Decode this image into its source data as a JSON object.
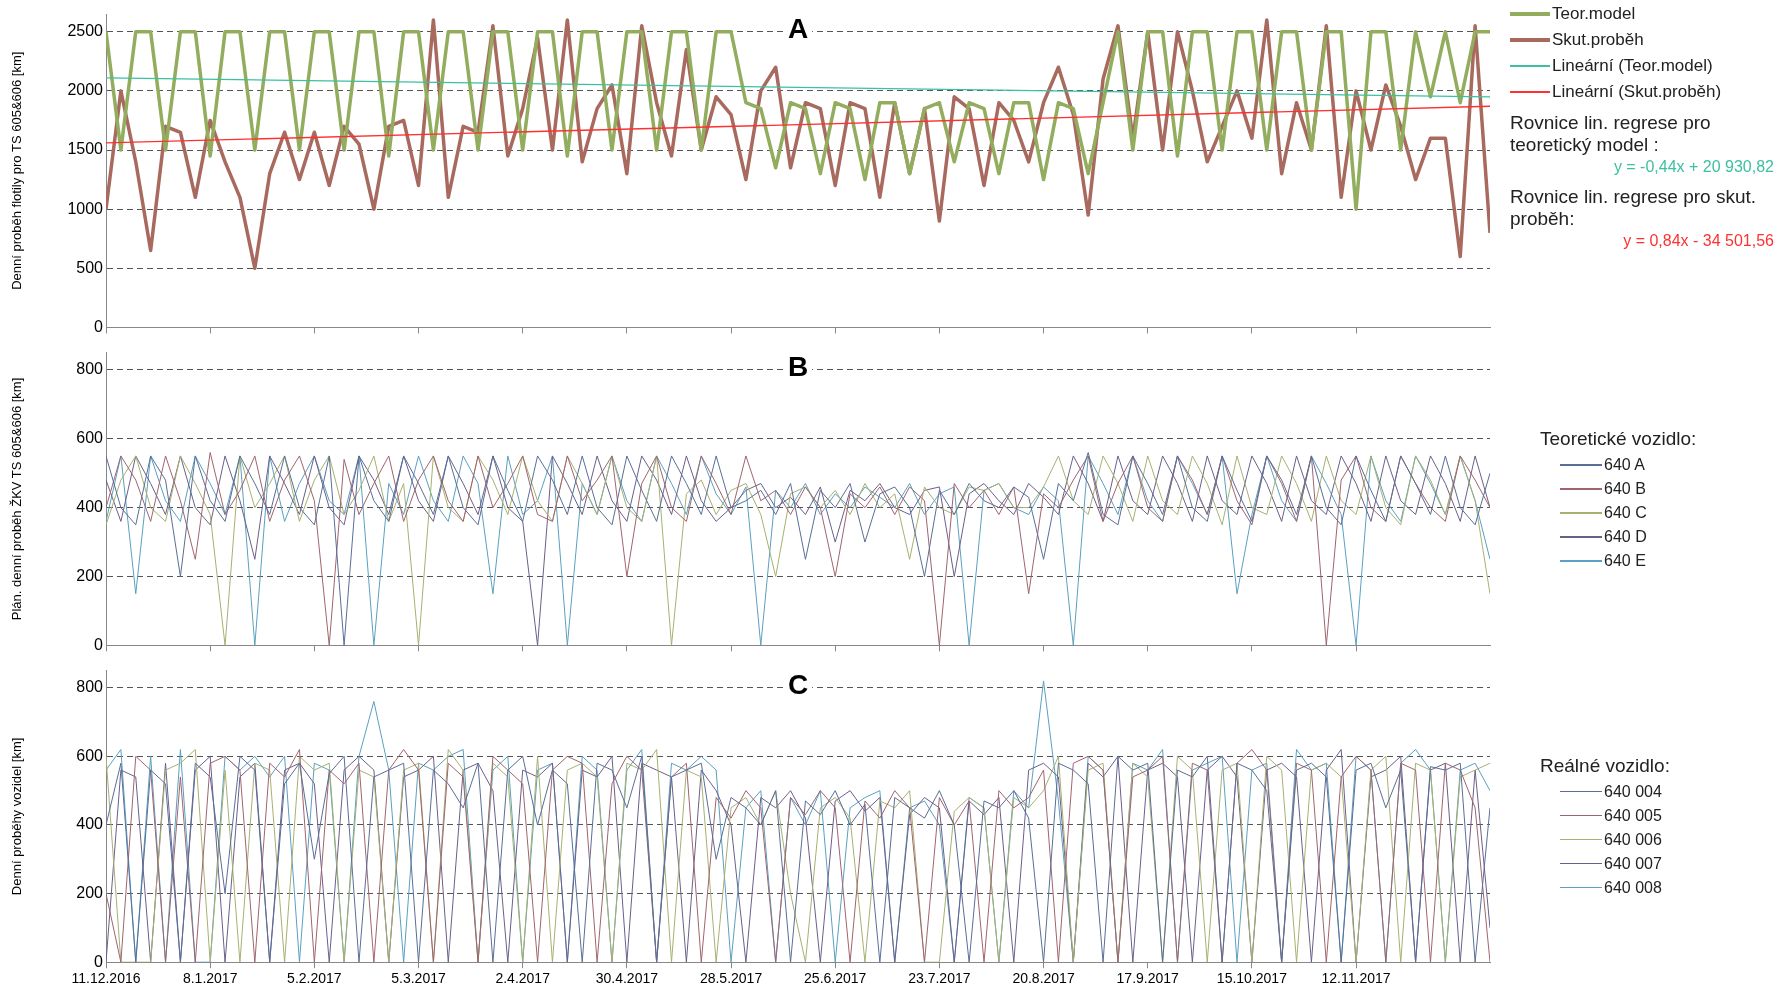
{
  "chart_data": [
    {
      "type": "line",
      "title": "A",
      "ylabel": "Denní proběh flotily pro TS 605&606 [km]",
      "legend": "right",
      "grid": "y",
      "marker": "none",
      "tick_labels": "y",
      "x": [
        "2016-12-11",
        "2016-12-15",
        "2016-12-19",
        "2016-12-23",
        "2016-12-27",
        "2016-12-31",
        "2017-01-04",
        "2017-01-08",
        "2017-01-12",
        "2017-01-16",
        "2017-01-20",
        "2017-01-24",
        "2017-01-28",
        "2017-02-01",
        "2017-02-05",
        "2017-02-09",
        "2017-02-13",
        "2017-02-17",
        "2017-02-21",
        "2017-02-25",
        "2017-03-01",
        "2017-03-05",
        "2017-03-09",
        "2017-03-13",
        "2017-03-17",
        "2017-03-21",
        "2017-03-25",
        "2017-03-29",
        "2017-04-02",
        "2017-04-06",
        "2017-04-10",
        "2017-04-14",
        "2017-04-18",
        "2017-04-22",
        "2017-04-26",
        "2017-04-30",
        "2017-05-04",
        "2017-05-08",
        "2017-05-12",
        "2017-05-16",
        "2017-05-20",
        "2017-05-24",
        "2017-05-28",
        "2017-06-01",
        "2017-06-05",
        "2017-06-09",
        "2017-06-13",
        "2017-06-17",
        "2017-06-21",
        "2017-06-25",
        "2017-06-29",
        "2017-07-03",
        "2017-07-07",
        "2017-07-11",
        "2017-07-15",
        "2017-07-19",
        "2017-07-23",
        "2017-07-27",
        "2017-07-31",
        "2017-08-04",
        "2017-08-08",
        "2017-08-12",
        "2017-08-16",
        "2017-08-20",
        "2017-08-24",
        "2017-08-28",
        "2017-09-01",
        "2017-09-05",
        "2017-09-09",
        "2017-09-13",
        "2017-09-17",
        "2017-09-21",
        "2017-09-25",
        "2017-09-29",
        "2017-10-03",
        "2017-10-07",
        "2017-10-11",
        "2017-10-15",
        "2017-10-19",
        "2017-10-23",
        "2017-10-27",
        "2017-10-31",
        "2017-11-04",
        "2017-11-08",
        "2017-11-12",
        "2017-11-16",
        "2017-11-20",
        "2017-11-24",
        "2017-11-28",
        "2017-12-02",
        "2017-12-06",
        "2017-12-10",
        "2017-12-14",
        "2017-12-18"
      ],
      "xlim": [
        "2016-12-11",
        "2017-12-18"
      ],
      "xticks": [
        {
          "value": "2016-12-11",
          "label": null
        },
        {
          "value": "2017-01-08",
          "label": null
        },
        {
          "value": "2017-02-05",
          "label": null
        },
        {
          "value": "2017-03-05",
          "label": null
        },
        {
          "value": "2017-04-02",
          "label": null
        },
        {
          "value": "2017-04-30",
          "label": null
        },
        {
          "value": "2017-05-28",
          "label": null
        },
        {
          "value": "2017-06-25",
          "label": null
        },
        {
          "value": "2017-07-23",
          "label": null
        },
        {
          "value": "2017-08-20",
          "label": null
        },
        {
          "value": "2017-09-17",
          "label": null
        },
        {
          "value": "2017-10-15",
          "label": null
        },
        {
          "value": "2017-11-12",
          "label": null
        }
      ],
      "ylim": [
        0,
        2650
      ],
      "yticks": [
        0,
        500,
        1000,
        1500,
        2000,
        2500
      ],
      "series": [
        {
          "name": "Teor.model",
          "color": "#93ad5e",
          "values": [
            2500,
            1500,
            2500,
            2500,
            1500,
            2500,
            2500,
            1450,
            2500,
            2500,
            1500,
            2500,
            2500,
            1500,
            2500,
            2500,
            1500,
            2500,
            2500,
            1450,
            2500,
            2500,
            1500,
            2500,
            2500,
            1500,
            2500,
            2500,
            1500,
            2500,
            2500,
            1450,
            2500,
            2500,
            1500,
            2500,
            2500,
            1500,
            2500,
            2500,
            1500,
            2500,
            2500,
            1900,
            1850,
            1350,
            1900,
            1850,
            1300,
            1900,
            1850,
            1250,
            1900,
            1900,
            1300,
            1850,
            1900,
            1400,
            1900,
            1850,
            1300,
            1900,
            1900,
            1250,
            1900,
            1850,
            1300,
            1900,
            2500,
            1500,
            2500,
            2500,
            1450,
            2500,
            2500,
            1500,
            2500,
            2500,
            1500,
            2500,
            2500,
            1500,
            2500,
            2500,
            1000,
            2500,
            2500,
            1500,
            2500,
            1950,
            2500,
            1900,
            2500,
            2500
          ]
        },
        {
          "name": "Skut.proběh",
          "color": "#a86a5e",
          "values": [
            1000,
            2000,
            1400,
            650,
            1700,
            1650,
            1100,
            1750,
            1400,
            1100,
            500,
            1300,
            1650,
            1250,
            1650,
            1200,
            1700,
            1550,
            1000,
            1700,
            1750,
            1200,
            2600,
            1100,
            1700,
            1650,
            2550,
            1450,
            1850,
            2450,
            1500,
            2600,
            1400,
            1850,
            2050,
            1300,
            2550,
            1900,
            1450,
            2350,
            1500,
            1950,
            1800,
            1250,
            2000,
            2200,
            1350,
            1900,
            1850,
            1200,
            1900,
            1850,
            1100,
            1900,
            1300,
            1850,
            900,
            1950,
            1850,
            1200,
            1900,
            1750,
            1400,
            1900,
            2200,
            1800,
            950,
            2100,
            2550,
            1600,
            2500,
            1500,
            2500,
            2000,
            1400,
            1700,
            2000,
            1600,
            2600,
            1300,
            1900,
            1500,
            2550,
            1100,
            2000,
            1500,
            2050,
            1700,
            1250,
            1600,
            1600,
            600,
            2550,
            800
          ]
        },
        {
          "name": "Lineární (Teor.model)",
          "color": "#3cc0a0",
          "x": [
            "2016-12-11",
            "2017-12-18"
          ],
          "values": [
            2110,
            1950
          ]
        },
        {
          "name": "Lineární (Skut.proběh)",
          "color": "#ff3030",
          "x": [
            "2016-12-11",
            "2017-12-18"
          ],
          "values": [
            1560,
            1870
          ]
        }
      ],
      "annotations": [
        "Rovnice lin. regrese pro teoretický model :",
        "y = -0,44x + 20 930,82",
        "Rovnice lin. regrese pro skut. proběh:",
        "y = 0,84x - 34 501,56"
      ]
    },
    {
      "type": "line",
      "title": "B",
      "ylabel": "Plán. denní proběh ŽKV TS 605&606 [km]",
      "legend": "right",
      "legend_title": "Teoretické vozidlo:",
      "grid": "y",
      "marker": "none",
      "tick_labels": "y",
      "x": [
        "2016-12-11",
        "2016-12-15",
        "2016-12-19",
        "2016-12-23",
        "2016-12-27",
        "2016-12-31",
        "2017-01-04",
        "2017-01-08",
        "2017-01-12",
        "2017-01-16",
        "2017-01-20",
        "2017-01-24",
        "2017-01-28",
        "2017-02-01",
        "2017-02-05",
        "2017-02-09",
        "2017-02-13",
        "2017-02-17",
        "2017-02-21",
        "2017-02-25",
        "2017-03-01",
        "2017-03-05",
        "2017-03-09",
        "2017-03-13",
        "2017-03-17",
        "2017-03-21",
        "2017-03-25",
        "2017-03-29",
        "2017-04-02",
        "2017-04-06",
        "2017-04-10",
        "2017-04-14",
        "2017-04-18",
        "2017-04-22",
        "2017-04-26",
        "2017-04-30",
        "2017-05-04",
        "2017-05-08",
        "2017-05-12",
        "2017-05-16",
        "2017-05-20",
        "2017-05-24",
        "2017-05-28",
        "2017-06-01",
        "2017-06-05",
        "2017-06-09",
        "2017-06-13",
        "2017-06-17",
        "2017-06-21",
        "2017-06-25",
        "2017-06-29",
        "2017-07-03",
        "2017-07-07",
        "2017-07-11",
        "2017-07-15",
        "2017-07-19",
        "2017-07-23",
        "2017-07-27",
        "2017-07-31",
        "2017-08-04",
        "2017-08-08",
        "2017-08-12",
        "2017-08-16",
        "2017-08-20",
        "2017-08-24",
        "2017-08-28",
        "2017-09-01",
        "2017-09-05",
        "2017-09-09",
        "2017-09-13",
        "2017-09-17",
        "2017-09-21",
        "2017-09-25",
        "2017-09-29",
        "2017-10-03",
        "2017-10-07",
        "2017-10-11",
        "2017-10-15",
        "2017-10-19",
        "2017-10-23",
        "2017-10-27",
        "2017-10-31",
        "2017-11-04",
        "2017-11-08",
        "2017-11-12",
        "2017-11-16",
        "2017-11-20",
        "2017-11-24",
        "2017-11-28",
        "2017-12-02",
        "2017-12-06",
        "2017-12-10",
        "2017-12-14",
        "2017-12-18"
      ],
      "xlim": [
        "2016-12-11",
        "2017-12-18"
      ],
      "xticks": [
        {
          "value": "2016-12-11",
          "label": null
        },
        {
          "value": "2017-01-08",
          "label": null
        },
        {
          "value": "2017-02-05",
          "label": null
        },
        {
          "value": "2017-03-05",
          "label": null
        },
        {
          "value": "2017-04-02",
          "label": null
        },
        {
          "value": "2017-04-30",
          "label": null
        },
        {
          "value": "2017-05-28",
          "label": null
        },
        {
          "value": "2017-06-25",
          "label": null
        },
        {
          "value": "2017-07-23",
          "label": null
        },
        {
          "value": "2017-08-20",
          "label": null
        },
        {
          "value": "2017-09-17",
          "label": null
        },
        {
          "value": "2017-10-15",
          "label": null
        },
        {
          "value": "2017-11-12",
          "label": null
        }
      ],
      "ylim": [
        0,
        850
      ],
      "yticks": [
        0,
        200,
        400,
        600,
        800
      ],
      "series": [
        {
          "name": "640 A",
          "color": "#5a6e96",
          "values": [
            550,
            400,
            350,
            550,
            480,
            200,
            550,
            420,
            360,
            550,
            470,
            380,
            550,
            400,
            350,
            550,
            0,
            550,
            420,
            360,
            550,
            470,
            380,
            550,
            400,
            350,
            550,
            450,
            360,
            550,
            480,
            380,
            550,
            400,
            350,
            550,
            450,
            360,
            550,
            470,
            380,
            550,
            400,
            420,
            450,
            380,
            470,
            250,
            450,
            400,
            470,
            300,
            440,
            460,
            400,
            200,
            450,
            380,
            470,
            420,
            400,
            460,
            430,
            250,
            470,
            420,
            560,
            380,
            350,
            550,
            470,
            380,
            550,
            400,
            360,
            550,
            450,
            360,
            550,
            480,
            380,
            550,
            400,
            350,
            550,
            450,
            360,
            550,
            470,
            380,
            550,
            400,
            350,
            500
          ]
        },
        {
          "name": "640 B",
          "color": "#a0646e",
          "values": [
            400,
            550,
            480,
            360,
            550,
            420,
            250,
            560,
            380,
            450,
            550,
            360,
            480,
            550,
            420,
            0,
            540,
            380,
            470,
            550,
            360,
            480,
            550,
            420,
            360,
            550,
            400,
            470,
            550,
            380,
            360,
            550,
            420,
            480,
            550,
            200,
            470,
            550,
            400,
            360,
            550,
            470,
            380,
            550,
            420,
            450,
            380,
            460,
            400,
            200,
            440,
            400,
            460,
            380,
            460,
            420,
            0,
            470,
            400,
            450,
            380,
            460,
            150,
            440,
            400,
            480,
            550,
            360,
            470,
            550,
            400,
            360,
            550,
            480,
            380,
            550,
            420,
            350,
            550,
            470,
            360,
            550,
            0,
            480,
            550,
            400,
            360,
            550,
            470,
            400,
            360,
            550,
            480,
            400
          ]
        },
        {
          "name": "640 C",
          "color": "#a8b070",
          "values": [
            350,
            480,
            550,
            400,
            360,
            550,
            470,
            380,
            0,
            550,
            400,
            470,
            550,
            360,
            480,
            550,
            380,
            450,
            550,
            360,
            470,
            0,
            550,
            400,
            360,
            550,
            480,
            380,
            550,
            420,
            360,
            550,
            470,
            380,
            550,
            400,
            360,
            550,
            0,
            440,
            480,
            380,
            450,
            470,
            380,
            200,
            440,
            460,
            400,
            450,
            380,
            470,
            400,
            440,
            250,
            460,
            400,
            380,
            460,
            450,
            470,
            400,
            400,
            460,
            550,
            420,
            380,
            550,
            470,
            360,
            550,
            420,
            380,
            550,
            470,
            350,
            550,
            400,
            380,
            550,
            470,
            360,
            550,
            420,
            380,
            550,
            400,
            350,
            550,
            480,
            380,
            550,
            420,
            150
          ]
        },
        {
          "name": "640 D",
          "color": "#6b5f8a",
          "values": [
            480,
            360,
            550,
            470,
            380,
            550,
            400,
            350,
            550,
            420,
            250,
            550,
            470,
            380,
            550,
            400,
            350,
            550,
            480,
            380,
            550,
            420,
            360,
            550,
            470,
            380,
            550,
            400,
            360,
            0,
            550,
            470,
            380,
            550,
            420,
            360,
            550,
            480,
            380,
            550,
            420,
            360,
            400,
            450,
            470,
            400,
            430,
            380,
            460,
            300,
            450,
            420,
            470,
            400,
            380,
            450,
            460,
            200,
            440,
            470,
            420,
            380,
            470,
            430,
            380,
            550,
            470,
            360,
            550,
            420,
            380,
            550,
            470,
            360,
            550,
            420,
            380,
            550,
            470,
            360,
            550,
            420,
            380,
            550,
            470,
            360,
            550,
            420,
            380,
            550,
            470,
            360,
            550,
            400
          ]
        },
        {
          "name": "640 E",
          "color": "#5aa0c0",
          "values": [
            360,
            550,
            150,
            550,
            420,
            360,
            550,
            470,
            380,
            550,
            0,
            550,
            360,
            470,
            550,
            420,
            380,
            550,
            0,
            470,
            380,
            550,
            420,
            360,
            550,
            470,
            150,
            550,
            380,
            420,
            550,
            0,
            470,
            380,
            550,
            420,
            360,
            550,
            470,
            380,
            550,
            440,
            380,
            460,
            0,
            450,
            400,
            470,
            380,
            440,
            400,
            460,
            430,
            400,
            470,
            380,
            440,
            460,
            0,
            450,
            470,
            400,
            380,
            460,
            420,
            0,
            550,
            470,
            380,
            550,
            420,
            360,
            550,
            470,
            380,
            550,
            150,
            380,
            550,
            420,
            360,
            550,
            470,
            380,
            0,
            550,
            420,
            360,
            550,
            470,
            380,
            550,
            420,
            250
          ]
        }
      ]
    },
    {
      "type": "line",
      "title": "C",
      "ylabel": "Denní proběhy vozidel [km]",
      "legend": "right",
      "legend_title": "Reálné vozidlo:",
      "grid": "y",
      "marker": "none",
      "x": [
        "2016-12-11",
        "2016-12-15",
        "2016-12-19",
        "2016-12-23",
        "2016-12-27",
        "2016-12-31",
        "2017-01-04",
        "2017-01-08",
        "2017-01-12",
        "2017-01-16",
        "2017-01-20",
        "2017-01-24",
        "2017-01-28",
        "2017-02-01",
        "2017-02-05",
        "2017-02-09",
        "2017-02-13",
        "2017-02-17",
        "2017-02-21",
        "2017-02-25",
        "2017-03-01",
        "2017-03-05",
        "2017-03-09",
        "2017-03-13",
        "2017-03-17",
        "2017-03-21",
        "2017-03-25",
        "2017-03-29",
        "2017-04-02",
        "2017-04-06",
        "2017-04-10",
        "2017-04-14",
        "2017-04-18",
        "2017-04-22",
        "2017-04-26",
        "2017-04-30",
        "2017-05-04",
        "2017-05-08",
        "2017-05-12",
        "2017-05-16",
        "2017-05-20",
        "2017-05-24",
        "2017-05-28",
        "2017-06-01",
        "2017-06-05",
        "2017-06-09",
        "2017-06-13",
        "2017-06-17",
        "2017-06-21",
        "2017-06-25",
        "2017-06-29",
        "2017-07-03",
        "2017-07-07",
        "2017-07-11",
        "2017-07-15",
        "2017-07-19",
        "2017-07-23",
        "2017-07-27",
        "2017-07-31",
        "2017-08-04",
        "2017-08-08",
        "2017-08-12",
        "2017-08-16",
        "2017-08-20",
        "2017-08-24",
        "2017-08-28",
        "2017-09-01",
        "2017-09-05",
        "2017-09-09",
        "2017-09-13",
        "2017-09-17",
        "2017-09-21",
        "2017-09-25",
        "2017-09-29",
        "2017-10-03",
        "2017-10-07",
        "2017-10-11",
        "2017-10-15",
        "2017-10-19",
        "2017-10-23",
        "2017-10-27",
        "2017-10-31",
        "2017-11-04",
        "2017-11-08",
        "2017-11-12",
        "2017-11-16",
        "2017-11-20",
        "2017-11-24",
        "2017-11-28",
        "2017-12-02",
        "2017-12-06",
        "2017-12-10",
        "2017-12-14",
        "2017-12-18"
      ],
      "xlim": [
        "2016-12-11",
        "2017-12-18"
      ],
      "xticks": [
        {
          "value": "2016-12-11",
          "label": "11.12.2016"
        },
        {
          "value": "2017-01-08",
          "label": "8.1.2017"
        },
        {
          "value": "2017-02-05",
          "label": "5.2.2017"
        },
        {
          "value": "2017-03-05",
          "label": "5.3.2017"
        },
        {
          "value": "2017-04-02",
          "label": "2.4.2017"
        },
        {
          "value": "2017-04-30",
          "label": "30.4.2017"
        },
        {
          "value": "2017-05-28",
          "label": "28.5.2017"
        },
        {
          "value": "2017-06-25",
          "label": "25.6.2017"
        },
        {
          "value": "2017-07-23",
          "label": "23.7.2017"
        },
        {
          "value": "2017-08-20",
          "label": "20.8.2017"
        },
        {
          "value": "2017-09-17",
          "label": "17.9.2017"
        },
        {
          "value": "2017-10-15",
          "label": "15.10.2017"
        },
        {
          "value": "2017-11-12",
          "label": "12.11.2017"
        }
      ],
      "ylim": [
        0,
        850
      ],
      "yticks": [
        0,
        200,
        400,
        600,
        800
      ],
      "series": [
        {
          "name": "640 004",
          "color": "#5a6e96",
          "values": [
            400,
            580,
            0,
            560,
            520,
            0,
            580,
            540,
            200,
            600,
            560,
            0,
            520,
            580,
            300,
            550,
            600,
            0,
            540,
            560,
            580,
            0,
            560,
            520,
            450,
            580,
            0,
            560,
            600,
            400,
            560,
            520,
            0,
            580,
            560,
            450,
            600,
            0,
            540,
            560,
            580,
            300,
            480,
            450,
            400,
            500,
            0,
            470,
            430,
            500,
            400,
            460,
            0,
            480,
            450,
            420,
            500,
            400,
            0,
            470,
            450,
            500,
            420,
            0,
            580,
            560,
            520,
            0,
            600,
            560,
            580,
            0,
            560,
            540,
            600,
            0,
            580,
            560,
            500,
            0,
            560,
            580,
            540,
            0,
            560,
            580,
            450,
            560,
            0,
            570,
            560,
            580,
            0,
            450
          ]
        },
        {
          "name": "640 005",
          "color": "#a0646e",
          "values": [
            200,
            0,
            600,
            560,
            0,
            540,
            0,
            580,
            600,
            560,
            0,
            580,
            540,
            620,
            0,
            560,
            520,
            580,
            0,
            560,
            620,
            560,
            0,
            580,
            540,
            0,
            600,
            560,
            520,
            0,
            560,
            600,
            580,
            0,
            520,
            600,
            560,
            0,
            540,
            580,
            0,
            480,
            420,
            500,
            450,
            0,
            480,
            430,
            500,
            450,
            0,
            470,
            420,
            500,
            450,
            0,
            480,
            400,
            470,
            0,
            500,
            450,
            480,
            560,
            0,
            580,
            600,
            560,
            0,
            540,
            560,
            600,
            0,
            580,
            560,
            0,
            580,
            620,
            560,
            0,
            580,
            560,
            0,
            540,
            600,
            560,
            0,
            580,
            560,
            0,
            580,
            560,
            450,
            0
          ]
        },
        {
          "name": "640 006",
          "color": "#a8b070",
          "values": [
            600,
            0,
            0,
            0,
            560,
            580,
            620,
            0,
            560,
            0,
            580,
            560,
            0,
            600,
            560,
            580,
            0,
            560,
            540,
            0,
            560,
            580,
            0,
            620,
            560,
            0,
            580,
            540,
            0,
            600,
            0,
            560,
            580,
            540,
            0,
            580,
            560,
            620,
            0,
            560,
            540,
            0,
            450,
            480,
            400,
            500,
            200,
            0,
            450,
            480,
            420,
            0,
            470,
            450,
            500,
            0,
            0,
            440,
            480,
            450,
            0,
            480,
            450,
            500,
            600,
            0,
            560,
            580,
            0,
            580,
            540,
            0,
            600,
            560,
            0,
            560,
            580,
            0,
            600,
            560,
            0,
            560,
            580,
            540,
            0,
            560,
            600,
            0,
            580,
            560,
            0,
            540,
            560,
            580
          ]
        },
        {
          "name": "640 007",
          "color": "#6b5f8a",
          "values": [
            0,
            560,
            540,
            0,
            580,
            0,
            560,
            600,
            0,
            540,
            580,
            0,
            560,
            580,
            520,
            0,
            560,
            600,
            560,
            0,
            540,
            560,
            600,
            0,
            560,
            580,
            500,
            0,
            560,
            540,
            580,
            0,
            560,
            540,
            600,
            0,
            580,
            560,
            540,
            0,
            560,
            500,
            400,
            0,
            480,
            450,
            500,
            420,
            0,
            470,
            500,
            440,
            480,
            0,
            430,
            480,
            450,
            0,
            470,
            430,
            480,
            0,
            560,
            580,
            540,
            0,
            580,
            540,
            600,
            0,
            560,
            580,
            540,
            0,
            560,
            600,
            540,
            0,
            560,
            580,
            540,
            0,
            560,
            620,
            0,
            540,
            560,
            600,
            0,
            560,
            580,
            0,
            560,
            100
          ]
        },
        {
          "name": "640 008",
          "color": "#5aa0c0",
          "values": [
            560,
            620,
            0,
            600,
            0,
            620,
            0,
            0,
            600,
            560,
            600,
            540,
            600,
            0,
            580,
            560,
            0,
            600,
            760,
            560,
            0,
            580,
            560,
            600,
            620,
            0,
            560,
            600,
            0,
            560,
            580,
            0,
            600,
            560,
            0,
            560,
            620,
            0,
            580,
            560,
            600,
            560,
            0,
            450,
            500,
            0,
            480,
            400,
            500,
            0,
            450,
            480,
            500,
            0,
            450,
            470,
            400,
            0,
            480,
            450,
            0,
            500,
            450,
            820,
            470,
            0,
            600,
            560,
            0,
            580,
            560,
            620,
            0,
            560,
            580,
            600,
            0,
            560,
            580,
            0,
            620,
            560,
            580,
            0,
            600,
            560,
            0,
            580,
            620,
            560,
            0,
            560,
            580,
            500
          ]
        }
      ]
    }
  ]
}
